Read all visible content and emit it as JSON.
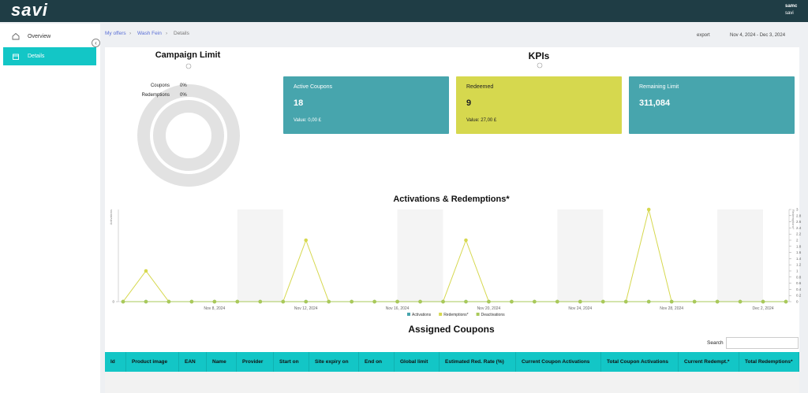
{
  "top_bar": {
    "logo": "savi",
    "user_name": "samc",
    "user_org": "savi"
  },
  "sidebar": {
    "items": [
      "Overview",
      "Details"
    ]
  },
  "breadcrumb": [
    "My offers",
    "Wash Fein",
    "Details"
  ],
  "toolbar": {
    "export": "export",
    "date_range": "Nov 4, 2024 - Dec 3, 2024"
  },
  "campaign_limit": {
    "title": "Campaign Limit",
    "rings": [
      {
        "label": "Coupons",
        "value": 0,
        "value_label": "0%"
      },
      {
        "label": "Redemptions",
        "value": 0,
        "value_label": "0%"
      }
    ]
  },
  "kpis": {
    "title": "KPIs",
    "cards": [
      {
        "label": "Active Coupons",
        "value": "18",
        "note": "Value: 0,00 £"
      },
      {
        "label": "Redeemed",
        "value": "9",
        "note": "Value: 27,00 £"
      },
      {
        "label": "Remaining Limit",
        "value": "311,084"
      }
    ]
  },
  "chart_data": {
    "type": "line",
    "title": "Activations & Redemptions*",
    "y_label": "Activations",
    "y2_label": "Redemptions*",
    "categories": [
      null,
      null,
      null,
      null,
      "Nov 8, 2024",
      null,
      null,
      null,
      "Nov 12, 2024",
      null,
      null,
      null,
      "Nov 16, 2024",
      null,
      null,
      null,
      "Nov 20, 2024",
      null,
      null,
      null,
      "Nov 24, 2024",
      null,
      null,
      null,
      "Nov 28, 2024",
      null,
      null,
      null,
      "Dec 2, 2024",
      null
    ],
    "series": [
      {
        "name": "Activations",
        "color": "#47a5ad",
        "values": [
          0,
          0,
          0,
          0,
          0,
          0,
          0,
          0,
          0,
          0,
          0,
          0,
          0,
          0,
          0,
          0,
          0,
          0,
          0,
          0,
          0,
          0,
          0,
          0,
          0,
          0,
          0,
          0,
          0,
          0
        ]
      },
      {
        "name": "Redemptions*",
        "color": "#d6d84e",
        "axis": "y2",
        "values": [
          0,
          1,
          0,
          0,
          0,
          0,
          0,
          0,
          2,
          0,
          0,
          0,
          0,
          0,
          0,
          2,
          0,
          0,
          0,
          0,
          0,
          0,
          0,
          3,
          0,
          0,
          0,
          0,
          0,
          0
        ]
      },
      {
        "name": "Deactivations",
        "color": "#a9c95a",
        "axis": "y2",
        "values": [
          0,
          0,
          0,
          0,
          0,
          0,
          0,
          0,
          0,
          0,
          0,
          0,
          0,
          0,
          0,
          0,
          0,
          0,
          0,
          0,
          0,
          0,
          0,
          0,
          0,
          0,
          0,
          0,
          0,
          0
        ]
      }
    ],
    "ylim": [
      0,
      1
    ],
    "yticks": [
      0
    ],
    "y2lim": [
      0,
      3
    ],
    "y2ticks": [
      0,
      0.2,
      0.4,
      0.6,
      0.8,
      1,
      1.2,
      1.4,
      1.6,
      1.8,
      2,
      2.2,
      2.4,
      2.6,
      2.8,
      3
    ],
    "legend": "bottom"
  },
  "coupons_table": {
    "title": "Assigned Coupons",
    "search_label": "Search",
    "columns": [
      "Id",
      "Product image",
      "EAN",
      "Name",
      "Provider",
      "Start on",
      "Site expiry on",
      "End on",
      "Global limit",
      "Estimated Red. Rate (%)",
      "Current Coupon Activations",
      "Total Coupon Activations",
      "Current Redempt.*",
      "Total Redemptions*"
    ]
  }
}
